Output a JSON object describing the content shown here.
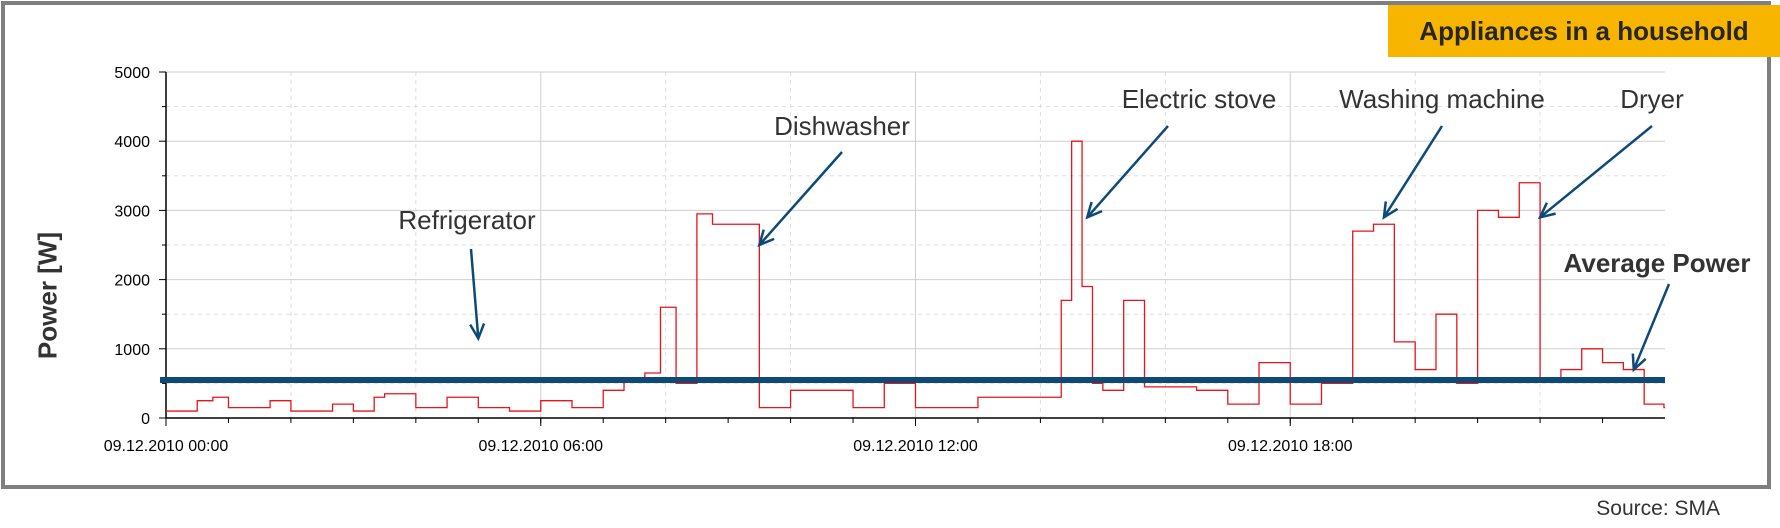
{
  "title": "Appliances in a household",
  "source": "Source: SMA",
  "colors": {
    "accent": "#f7b500",
    "series": "#e8141a",
    "average": "#0e4a78",
    "annotation": "#0e4a78",
    "frame": "#7f7f7f"
  },
  "chart_data": {
    "type": "line",
    "title": "Appliances in a household",
    "xlabel": "",
    "ylabel": "Power [W]",
    "ylim": [
      0,
      5000
    ],
    "yticks": [
      0,
      1000,
      2000,
      3000,
      4000,
      5000
    ],
    "xlim": [
      "09.12.2010 00:00",
      "10.12.2010 00:00"
    ],
    "xticks": [
      "09.12.2010 00:00",
      "09.12.2010 06:00",
      "09.12.2010 12:00",
      "09.12.2010 18:00"
    ],
    "grid": true,
    "average_power": 550,
    "series": [
      {
        "x": [
          "09.12.2010 00:00",
          "09.12.2010 00:30",
          "09.12.2010 00:45",
          "09.12.2010 01:00",
          "09.12.2010 01:40",
          "09.12.2010 02:00",
          "09.12.2010 02:40",
          "09.12.2010 03:00",
          "09.12.2010 03:20",
          "09.12.2010 03:30",
          "09.12.2010 04:00",
          "09.12.2010 04:30",
          "09.12.2010 05:00",
          "09.12.2010 05:30",
          "09.12.2010 06:00",
          "09.12.2010 06:30",
          "09.12.2010 07:00",
          "09.12.2010 07:20",
          "09.12.2010 07:40",
          "09.12.2010 07:55",
          "09.12.2010 08:10",
          "09.12.2010 08:30",
          "09.12.2010 08:45",
          "09.12.2010 09:00",
          "09.12.2010 09:15",
          "09.12.2010 09:30",
          "09.12.2010 10:00",
          "09.12.2010 11:00",
          "09.12.2010 11:30",
          "09.12.2010 12:00",
          "09.12.2010 13:00",
          "09.12.2010 14:00",
          "09.12.2010 14:20",
          "09.12.2010 14:30",
          "09.12.2010 14:40",
          "09.12.2010 14:50",
          "09.12.2010 15:00",
          "09.12.2010 15:20",
          "09.12.2010 15:40",
          "09.12.2010 16:30",
          "09.12.2010 17:00",
          "09.12.2010 17:30",
          "09.12.2010 18:00",
          "09.12.2010 18:30",
          "09.12.2010 19:00",
          "09.12.2010 19:20",
          "09.12.2010 19:40",
          "09.12.2010 20:00",
          "09.12.2010 20:20",
          "09.12.2010 20:40",
          "09.12.2010 21:00",
          "09.12.2010 21:20",
          "09.12.2010 21:40",
          "09.12.2010 22:00",
          "09.12.2010 22:20",
          "09.12.2010 22:40",
          "09.12.2010 23:00",
          "09.12.2010 23:20",
          "09.12.2010 23:40",
          "09.12.2010 23:59"
        ],
        "values": [
          100,
          250,
          300,
          150,
          250,
          100,
          200,
          100,
          300,
          350,
          150,
          300,
          150,
          100,
          250,
          150,
          400,
          550,
          650,
          1600,
          500,
          2950,
          2800,
          2800,
          2800,
          150,
          400,
          150,
          500,
          150,
          300,
          300,
          1700,
          4000,
          1900,
          500,
          400,
          1700,
          450,
          400,
          200,
          800,
          200,
          500,
          2700,
          2800,
          1100,
          700,
          1500,
          500,
          3000,
          2900,
          3400,
          550,
          700,
          1000,
          800,
          700,
          200,
          150
        ]
      }
    ],
    "annotations": [
      {
        "text": "Refrigerator",
        "target_x": "09.12.2010 05:00",
        "target_y": 1150
      },
      {
        "text": "Dishwasher",
        "target_x": "09.12.2010 09:30",
        "target_y": 2500
      },
      {
        "text": "Electric stove",
        "target_x": "09.12.2010 14:45",
        "target_y": 2900
      },
      {
        "text": "Washing machine",
        "target_x": "09.12.2010 19:30",
        "target_y": 2900
      },
      {
        "text": "Dryer",
        "target_x": "09.12.2010 22:00",
        "target_y": 2900
      },
      {
        "text": "Average Power",
        "target_x": "09.12.2010 23:30",
        "target_y": 700
      }
    ]
  }
}
